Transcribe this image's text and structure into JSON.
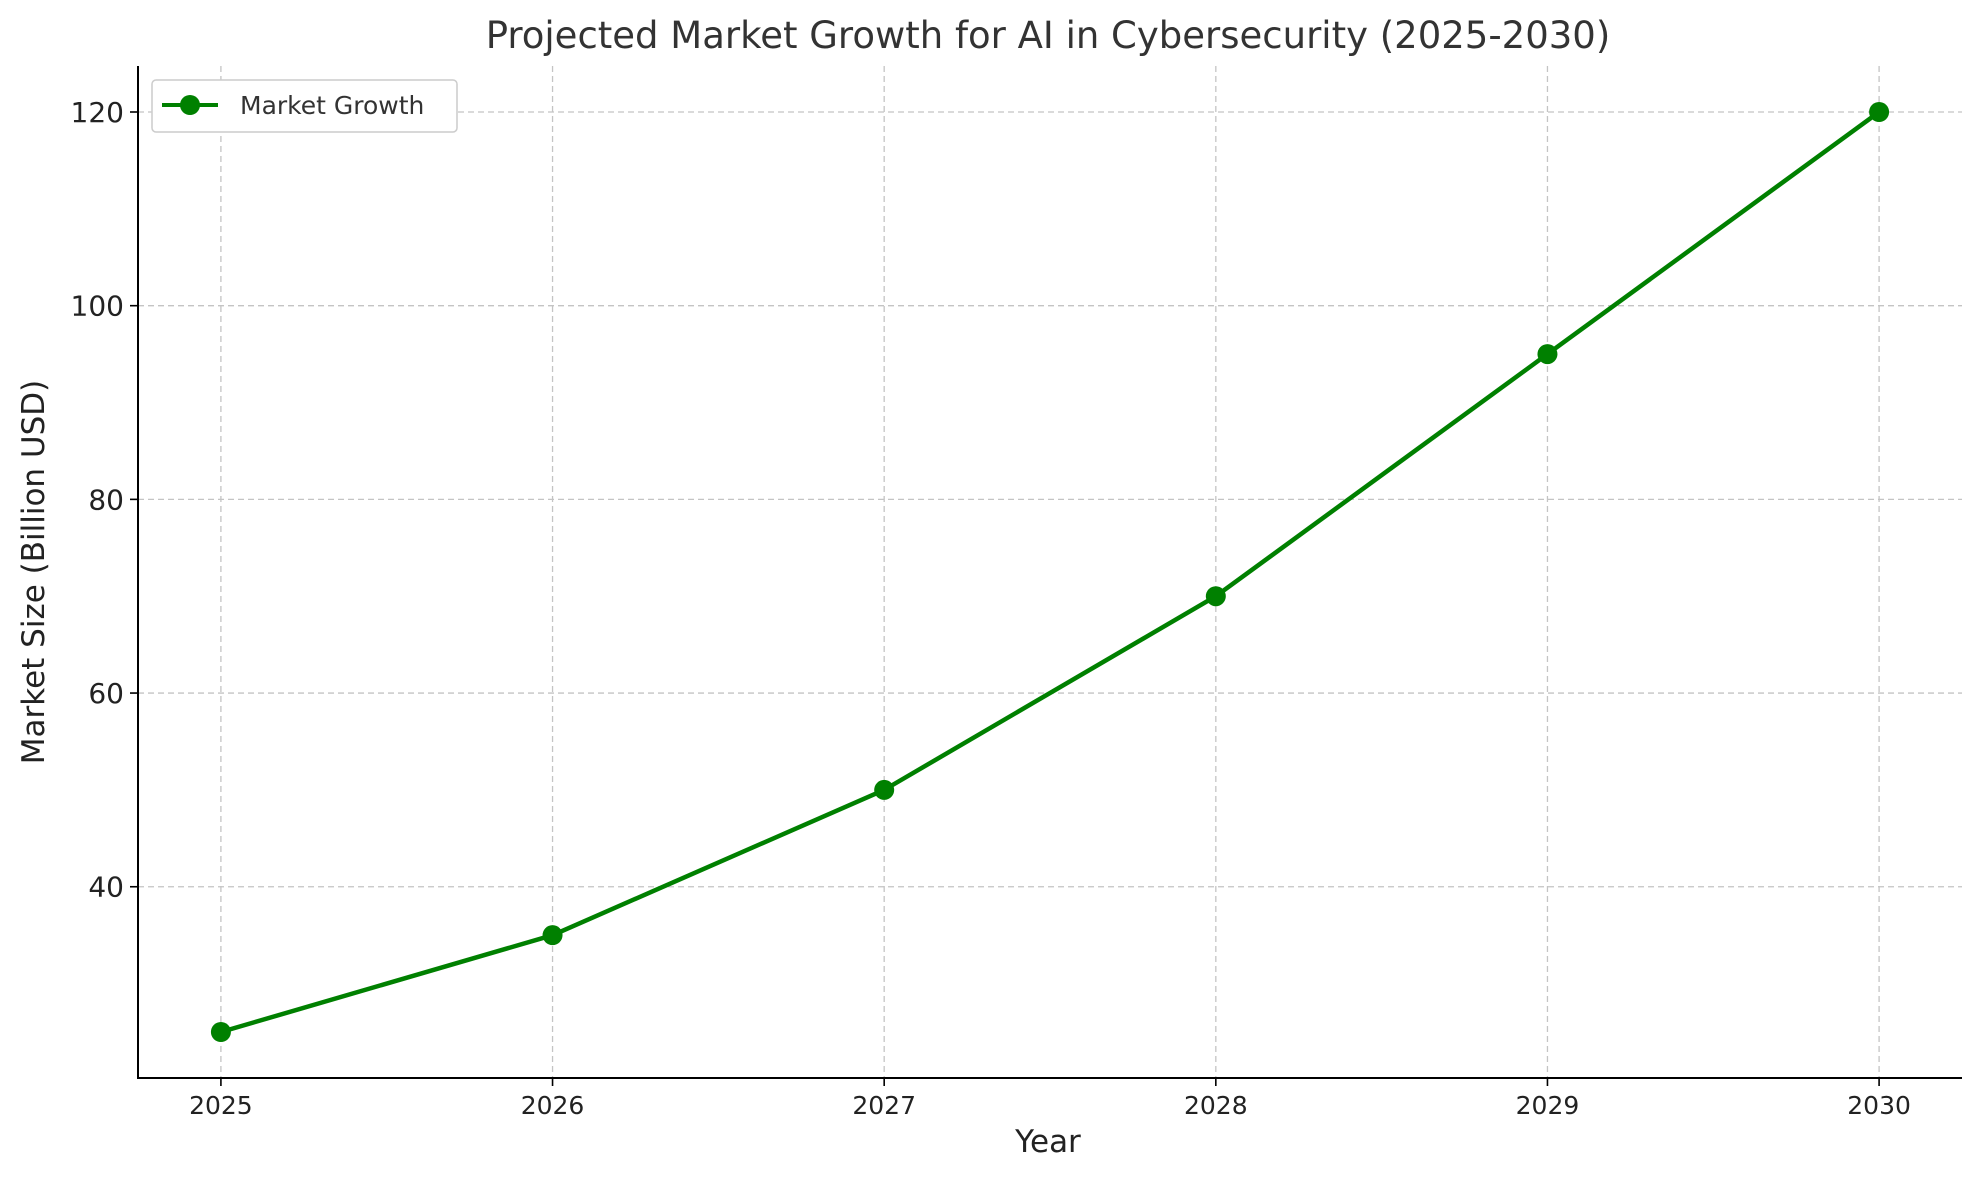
{
  "chart_data": {
    "type": "line",
    "title": "Projected Market Growth for AI in Cybersecurity (2025-2030)",
    "xlabel": "Year",
    "ylabel": "Market Size (Billion USD)",
    "x": [
      2025,
      2026,
      2027,
      2028,
      2029,
      2030
    ],
    "x_tick_labels": [
      "2025",
      "2026",
      "2027",
      "2028",
      "2029",
      "2030"
    ],
    "y_ticks": [
      40,
      60,
      80,
      100,
      120
    ],
    "y_tick_labels": [
      "40",
      "60",
      "80",
      "100",
      "120"
    ],
    "xlim": [
      2024.75,
      2030.25
    ],
    "ylim": [
      20.25,
      124.75
    ],
    "grid": true,
    "legend_position": "top-left",
    "series": [
      {
        "name": "Market Growth",
        "color": "#008000",
        "marker": "circle",
        "values": [
          25,
          35,
          50,
          70,
          95,
          120
        ]
      }
    ]
  }
}
